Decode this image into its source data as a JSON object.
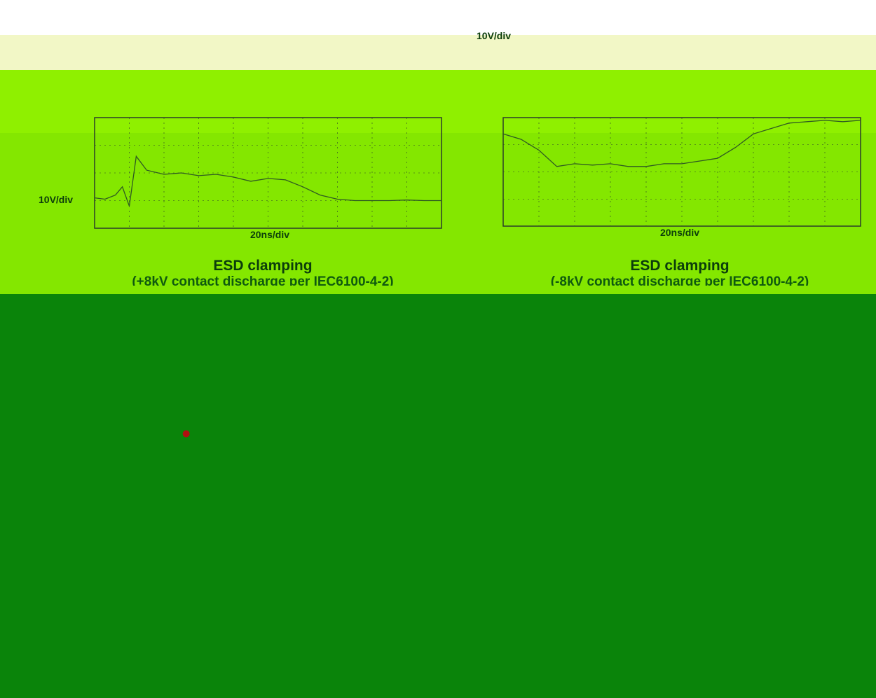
{
  "chart_data": [
    {
      "type": "line",
      "title": "ESD clamping",
      "subtitle": "(+8kV contact discharge per IEC6100-4-2)",
      "xlabel": "20ns/div",
      "ylabel": "10V/div",
      "x_divisions": 10,
      "y_divisions": 4,
      "grid": true,
      "series": [
        {
          "x": [
            0,
            0.3,
            0.6,
            0.8,
            1.0,
            1.2,
            1.5,
            2.0,
            2.5,
            3.0,
            3.5,
            4.0,
            4.5,
            5.0,
            5.5,
            6.0,
            6.5,
            7.0,
            7.5,
            8.0,
            8.5,
            9.0,
            9.5,
            10.0
          ],
          "y": [
            1.1,
            1.05,
            1.2,
            1.5,
            0.8,
            2.6,
            2.1,
            1.95,
            2.0,
            1.9,
            1.95,
            1.85,
            1.7,
            1.8,
            1.75,
            1.5,
            1.2,
            1.05,
            1.0,
            1.0,
            1.0,
            1.02,
            1.0,
            1.0
          ]
        }
      ]
    },
    {
      "type": "line",
      "title": "ESD clamping",
      "subtitle": "(-8kV contact discharge per IEC6100-4-2)",
      "xlabel": "20ns/div",
      "ylabel": "10V/div",
      "x_divisions": 10,
      "y_divisions": 4,
      "grid": true,
      "series": [
        {
          "x": [
            0,
            0.5,
            1.0,
            1.5,
            2.0,
            2.5,
            3.0,
            3.5,
            4.0,
            4.5,
            5.0,
            5.5,
            6.0,
            6.5,
            7.0,
            7.5,
            8.0,
            8.5,
            9.0,
            9.5,
            10.0
          ],
          "y": [
            3.4,
            3.2,
            2.8,
            2.2,
            2.3,
            2.25,
            2.3,
            2.2,
            2.2,
            2.3,
            2.3,
            2.4,
            2.5,
            2.9,
            3.4,
            3.6,
            3.8,
            3.85,
            3.9,
            3.85,
            3.9
          ]
        }
      ]
    }
  ],
  "colors": {
    "top_band": "#ffffff",
    "pale_band": "#f2f7c6",
    "bright_band": "#8ff000",
    "dark_band": "#0a840a",
    "trace": "#2f5a22",
    "grid": "#2b3e2b"
  }
}
